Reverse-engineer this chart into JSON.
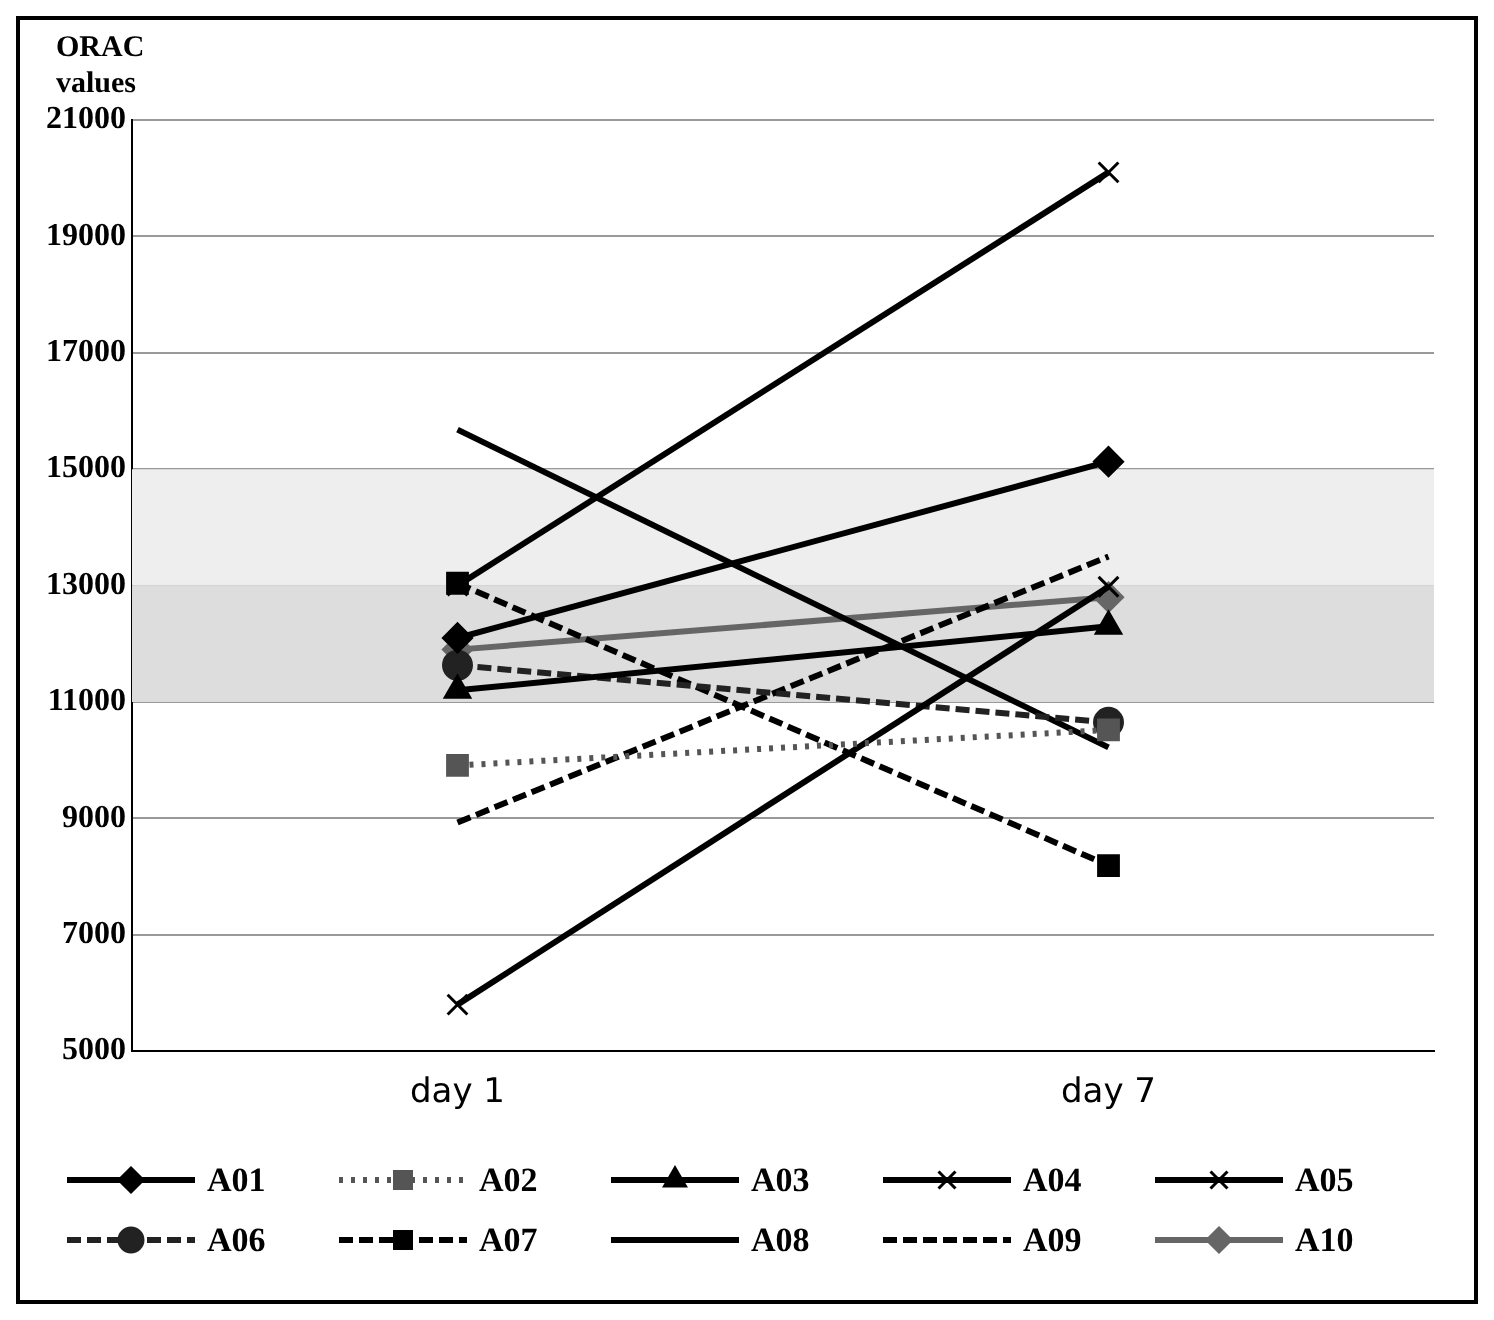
{
  "chart_data": {
    "type": "line",
    "ylabel": "ORAC values",
    "categories": [
      "day 1",
      "day 7"
    ],
    "ylim": [
      5000,
      21000
    ],
    "yticks": [
      5000,
      7000,
      9000,
      11000,
      13000,
      15000,
      17000,
      19000,
      21000
    ],
    "grid": "y",
    "legend": "bottom",
    "bands": [
      {
        "axis": "y",
        "from": 11000,
        "to": 13000,
        "color": "#dddddd"
      },
      {
        "axis": "y",
        "from": 13000,
        "to": 15000,
        "color": "#eeeeee"
      }
    ],
    "series": [
      {
        "name": "A01",
        "color": "#000000",
        "values": [
          12100,
          15130
        ],
        "marker": "diamond",
        "line_style": "solid"
      },
      {
        "name": "A02",
        "color": "#555555",
        "values": [
          9910,
          10520
        ],
        "marker": "square",
        "line_style": "dotted"
      },
      {
        "name": "A03",
        "color": "#000000",
        "values": [
          11200,
          12300
        ],
        "marker": "triangle",
        "line_style": "solid"
      },
      {
        "name": "A04",
        "color": "#000000",
        "values": [
          13000,
          20100
        ],
        "marker": "cross",
        "line_style": "solid"
      },
      {
        "name": "A05",
        "color": "#000000",
        "values": [
          5800,
          12980
        ],
        "marker": "cross",
        "line_style": "solid"
      },
      {
        "name": "A06",
        "color": "#222222",
        "values": [
          11630,
          10650
        ],
        "marker": "circle",
        "line_style": "dashed"
      },
      {
        "name": "A07",
        "color": "#000000",
        "values": [
          13040,
          8190
        ],
        "marker": "square",
        "line_style": "dashed"
      },
      {
        "name": "A08",
        "color": "#000000",
        "values": [
          15680,
          10220
        ],
        "marker": "none",
        "line_style": "solid"
      },
      {
        "name": "A09",
        "color": "#000000",
        "values": [
          8930,
          13500
        ],
        "marker": "none",
        "line_style": "dashed"
      },
      {
        "name": "A10",
        "color": "#666666",
        "values": [
          11900,
          12800
        ],
        "marker": "diamond",
        "line_style": "solid"
      }
    ]
  }
}
